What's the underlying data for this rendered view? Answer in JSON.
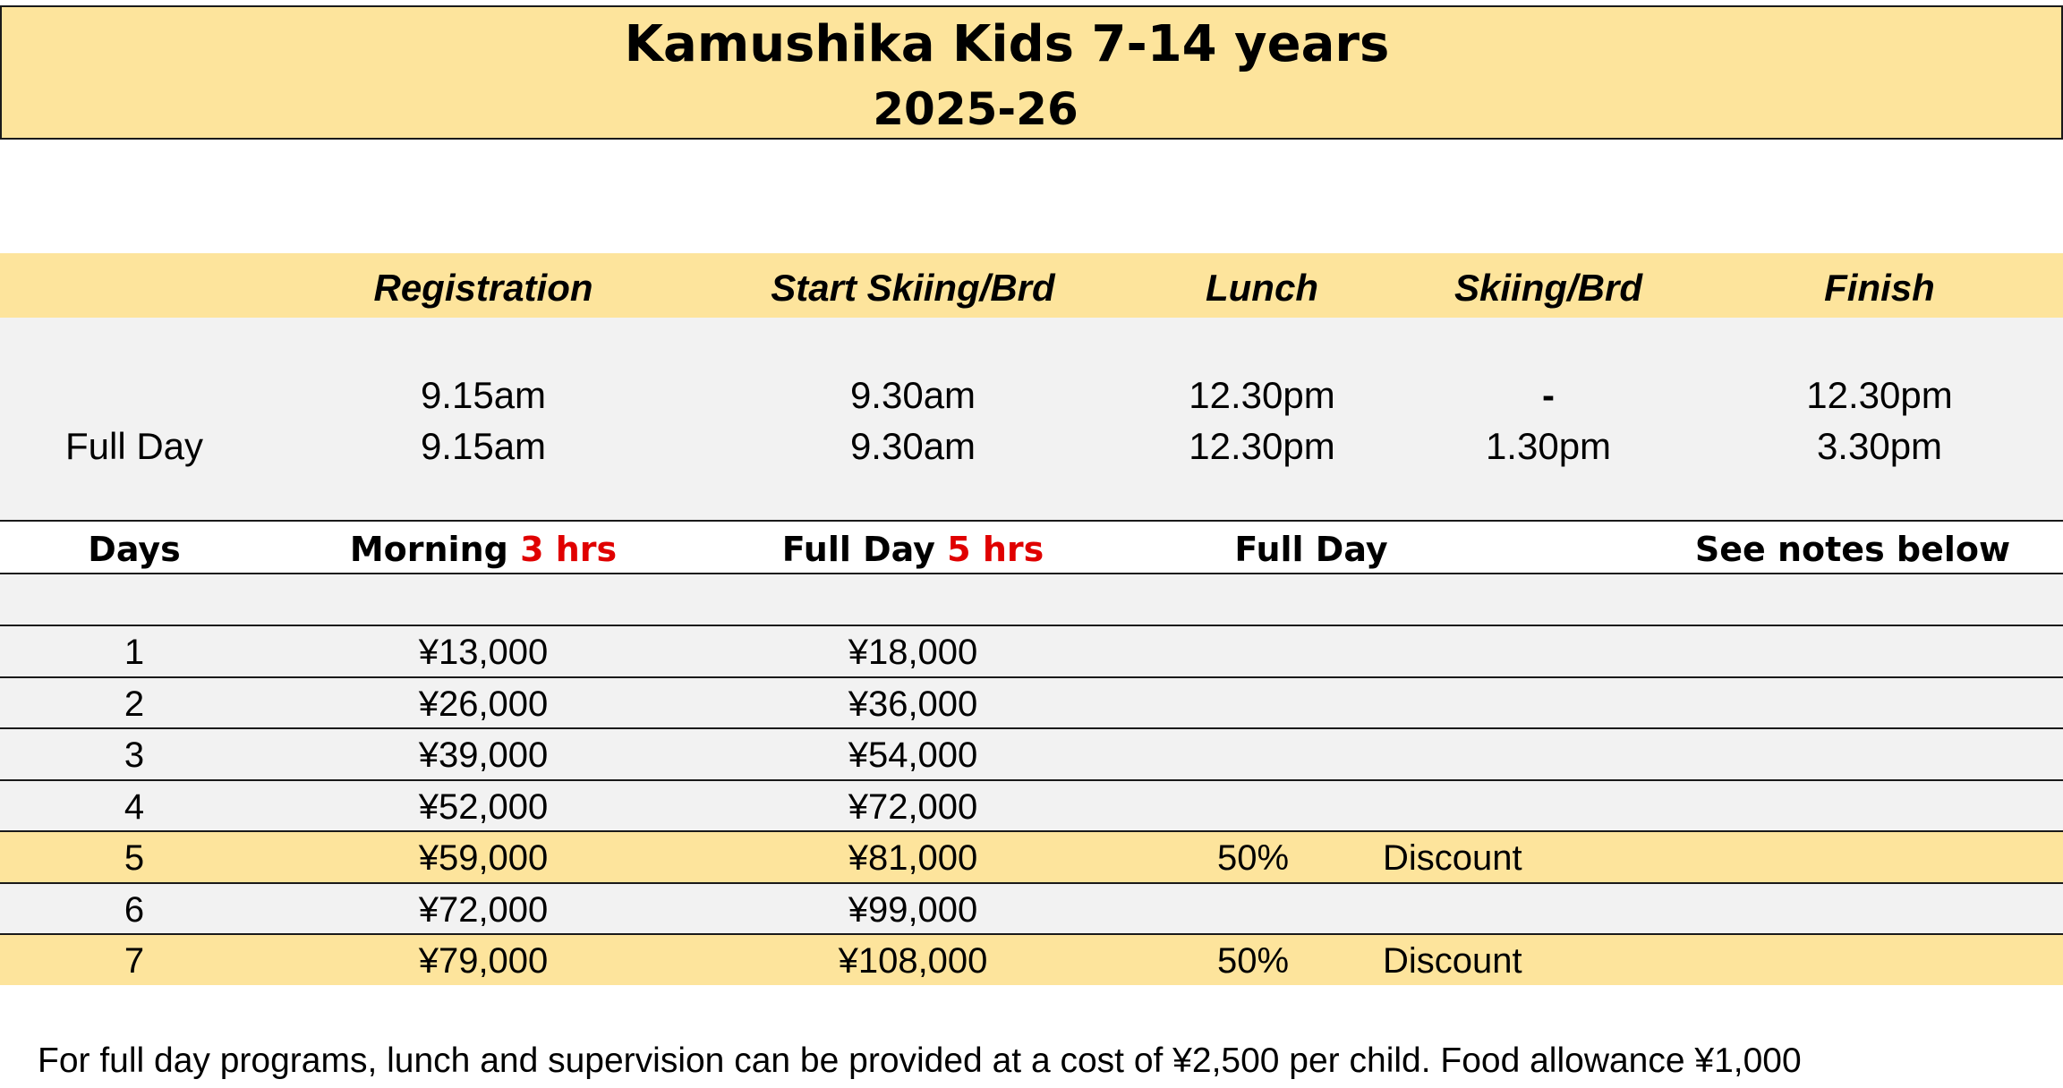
{
  "header": {
    "title": "Kamushika Kids  7-14 years",
    "season": "2025-26"
  },
  "schedule": {
    "columns": [
      "Registration",
      "Start Skiing/Brd",
      "Lunch",
      "Skiing/Brd",
      "Finish"
    ],
    "rows": [
      {
        "label": "",
        "cells": [
          "9.15am",
          "9.30am",
          "12.30pm",
          "-",
          "12.30pm"
        ]
      },
      {
        "label": "Full Day",
        "cells": [
          "9.15am",
          "9.30am",
          "12.30pm",
          "1.30pm",
          "3.30pm"
        ]
      }
    ]
  },
  "pricing": {
    "headers": {
      "days": "Days",
      "morning": "Morning",
      "morning_hours": "3 hrs",
      "fullday": "Full Day",
      "fullday_hours": "5 hrs",
      "fullday2": "Full Day",
      "notes": "See notes below"
    },
    "rows": [
      {
        "days": "1",
        "morning": "¥13,000",
        "fullday": "¥18,000",
        "discount_pct": "",
        "discount_label": ""
      },
      {
        "days": "2",
        "morning": "¥26,000",
        "fullday": "¥36,000",
        "discount_pct": "",
        "discount_label": ""
      },
      {
        "days": "3",
        "morning": "¥39,000",
        "fullday": "¥54,000",
        "discount_pct": "",
        "discount_label": ""
      },
      {
        "days": "4",
        "morning": "¥52,000",
        "fullday": "¥72,000",
        "discount_pct": "",
        "discount_label": ""
      },
      {
        "days": "5",
        "morning": "¥59,000",
        "fullday": "¥81,000",
        "discount_pct": "50%",
        "discount_label": "Discount"
      },
      {
        "days": "6",
        "morning": "¥72,000",
        "fullday": "¥99,000",
        "discount_pct": "",
        "discount_label": ""
      },
      {
        "days": "7",
        "morning": "¥79,000",
        "fullday": "¥108,000",
        "discount_pct": "50%",
        "discount_label": "Discount"
      }
    ]
  },
  "footer": {
    "note": "For full day programs, lunch and supervision can be provided at a cost of ¥2,500 per child. Food allowance ¥1,000"
  },
  "colors": {
    "highlight": "#fde49c",
    "grey": "#f2f2f2",
    "accent_red": "#e00000"
  }
}
